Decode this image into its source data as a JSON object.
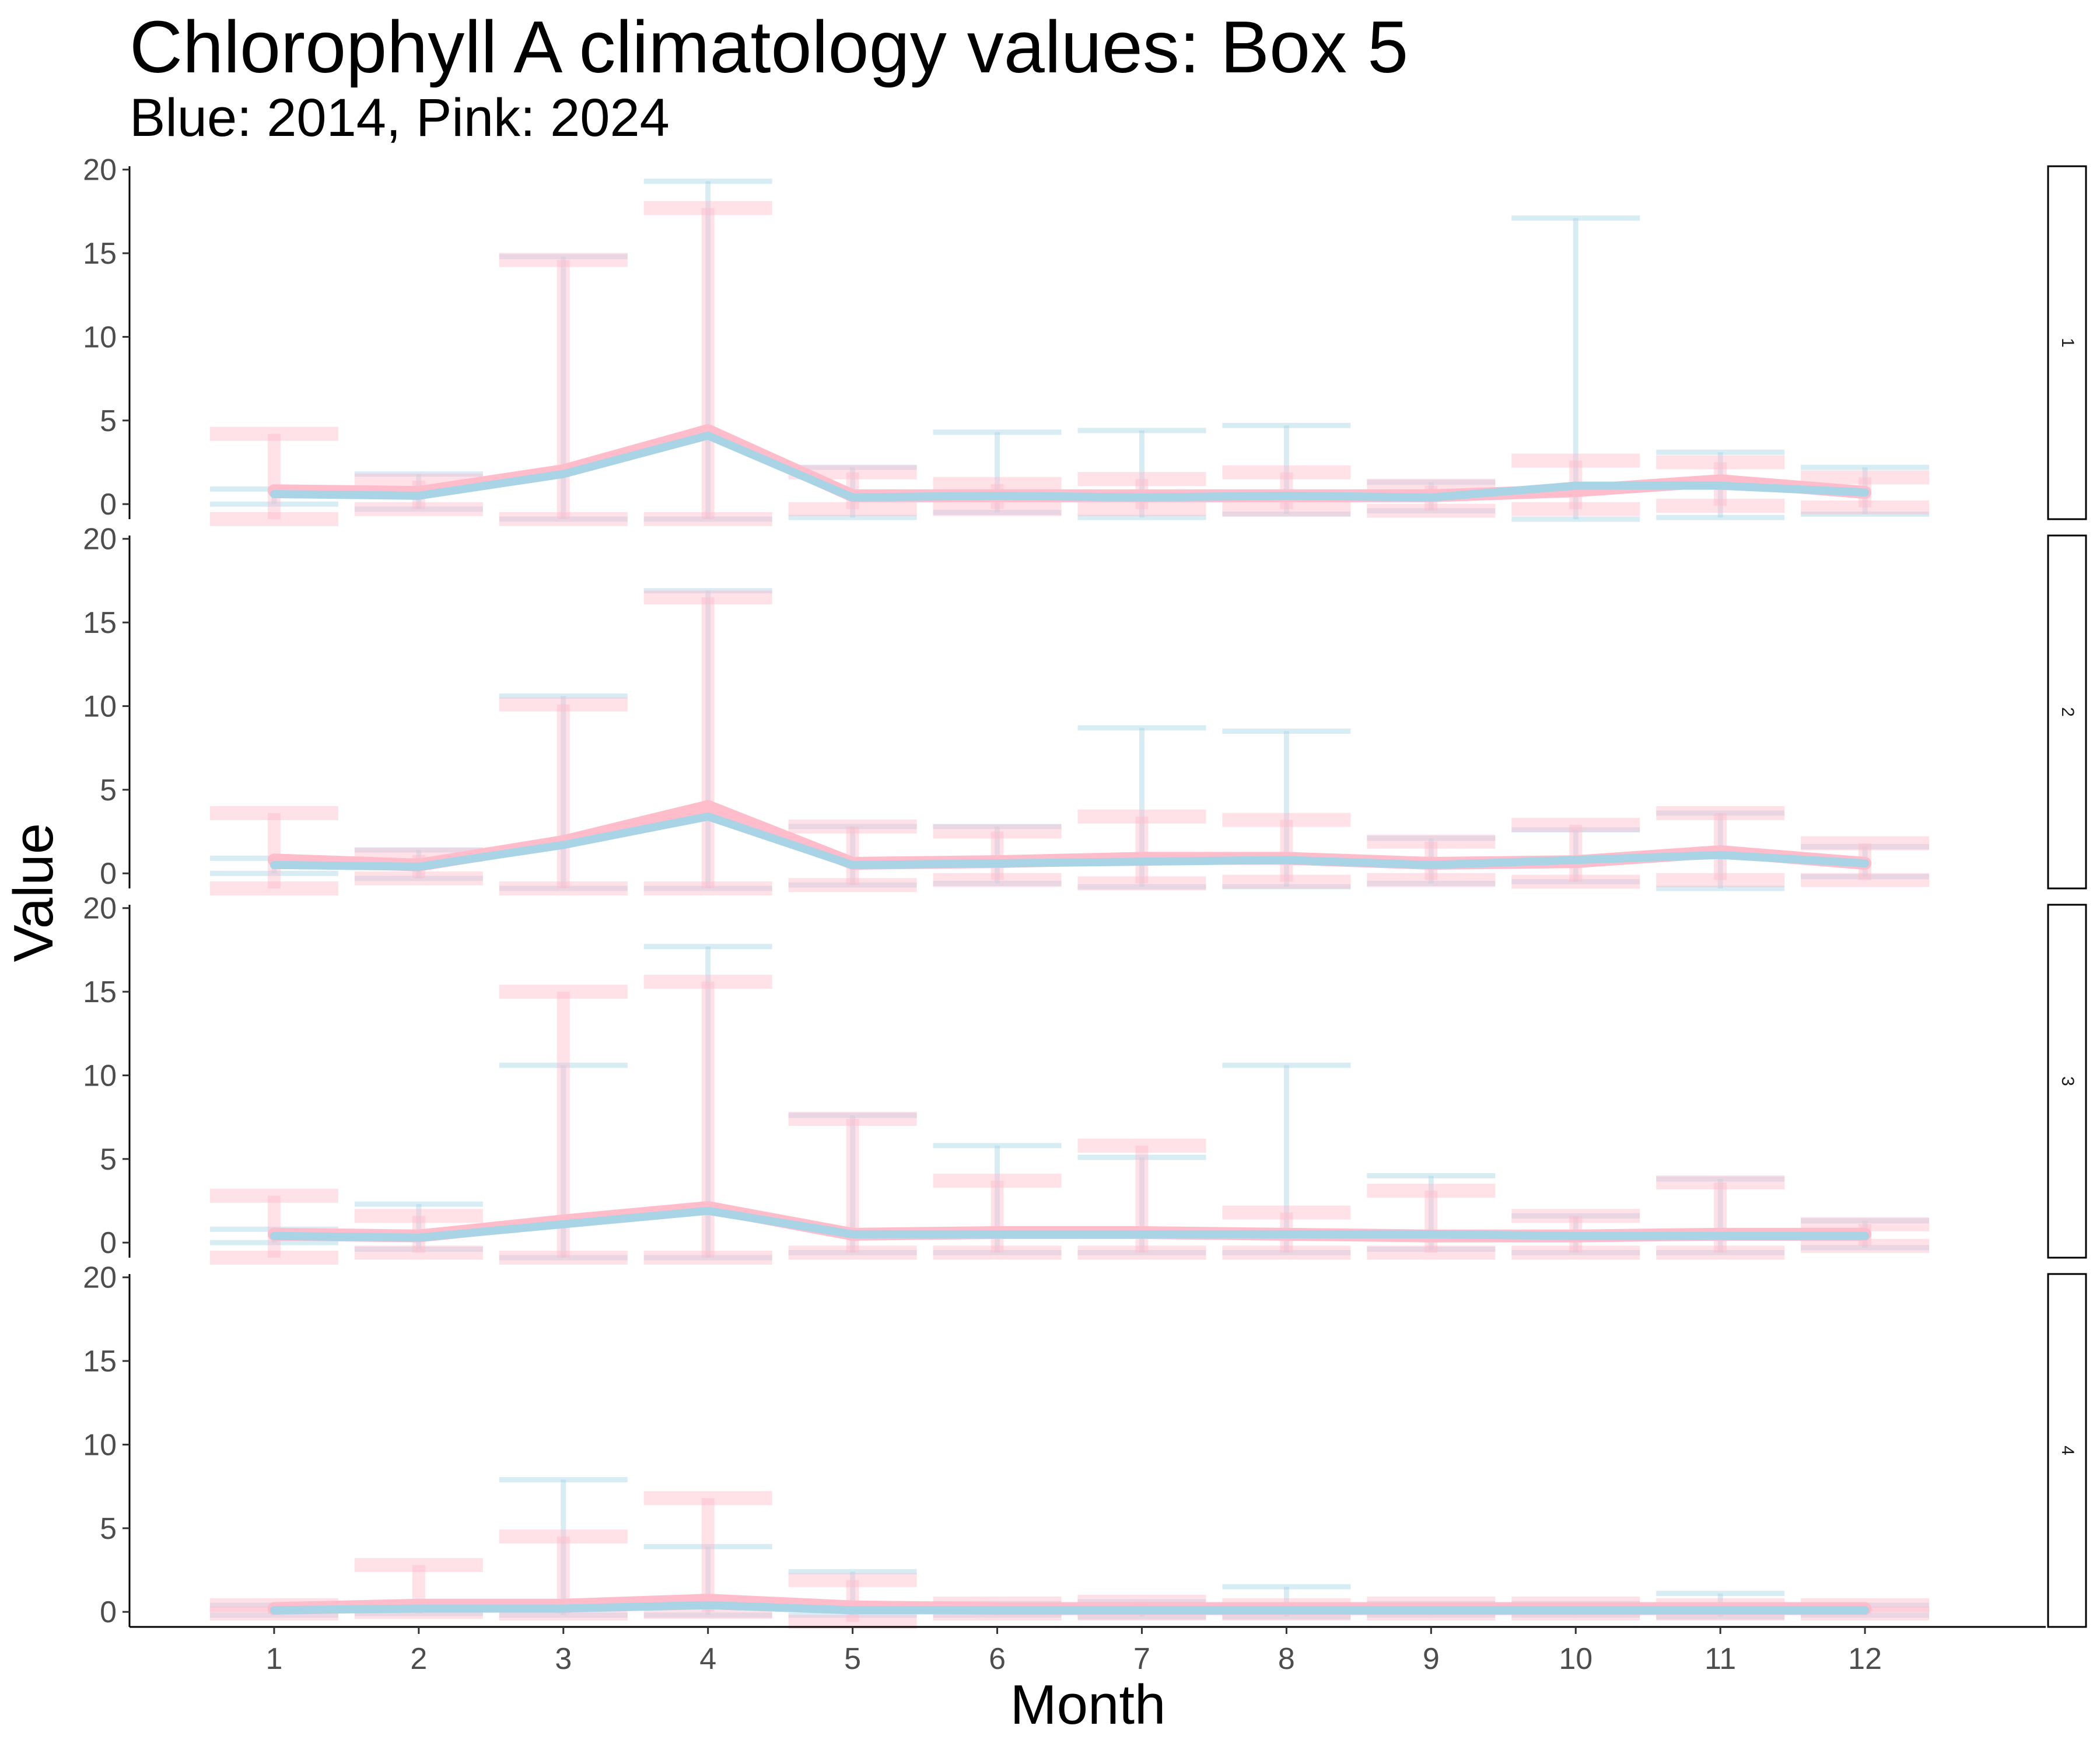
{
  "chart_data": {
    "type": "line",
    "title": "Chlorophyll A climatology values: Box 5",
    "subtitle": "Blue: 2014, Pink: 2024",
    "xlabel": "Month",
    "ylabel": "Value",
    "x": [
      1,
      2,
      3,
      4,
      5,
      6,
      7,
      8,
      9,
      10,
      11,
      12
    ],
    "ylim": [
      -0.9,
      20.2
    ],
    "yticks": [
      0,
      5,
      10,
      15,
      20
    ],
    "grid": false,
    "colors": {
      "2014": "#a8d4e6",
      "2024": "#ffbccb"
    },
    "panels": [
      {
        "strip": "1",
        "series": [
          {
            "mean": [
              0.6,
              0.5,
              1.8,
              4.1,
              0.4,
              0.5,
              0.4,
              0.5,
              0.4,
              1.1,
              1.1,
              0.7
            ],
            "lo": [
              0.0,
              -0.3,
              -0.9,
              -0.9,
              -0.8,
              -0.5,
              -0.8,
              -0.6,
              -0.4,
              -0.9,
              -0.8,
              -0.6
            ],
            "hi": [
              0.9,
              1.8,
              14.8,
              19.3,
              2.2,
              4.3,
              4.4,
              4.7,
              1.3,
              17.1,
              3.1,
              2.2
            ]
          },
          {
            "mean": [
              0.8,
              0.7,
              2.0,
              4.4,
              0.5,
              0.5,
              0.5,
              0.5,
              0.5,
              0.8,
              1.4,
              0.7
            ],
            "lo": [
              -0.9,
              -0.3,
              -0.9,
              -0.9,
              -0.3,
              -0.3,
              -0.3,
              -0.3,
              -0.4,
              -0.3,
              -0.1,
              -0.2
            ],
            "hi": [
              4.2,
              1.4,
              14.6,
              17.7,
              1.9,
              1.2,
              1.5,
              1.9,
              1.1,
              2.6,
              2.5,
              1.6
            ]
          }
        ]
      },
      {
        "strip": "2",
        "series": [
          {
            "mean": [
              0.5,
              0.4,
              1.7,
              3.4,
              0.5,
              0.6,
              0.7,
              0.8,
              0.5,
              0.8,
              1.1,
              0.6
            ],
            "lo": [
              0.0,
              -0.3,
              -0.9,
              -0.9,
              -0.7,
              -0.6,
              -0.8,
              -0.8,
              -0.6,
              -0.5,
              -0.9,
              -0.2
            ],
            "hi": [
              0.9,
              1.4,
              10.6,
              16.9,
              2.8,
              2.8,
              8.7,
              8.5,
              2.1,
              2.6,
              3.6,
              1.6
            ]
          },
          {
            "mean": [
              0.8,
              0.5,
              1.9,
              4.0,
              0.6,
              0.7,
              0.9,
              0.9,
              0.6,
              0.7,
              1.3,
              0.6
            ],
            "lo": [
              -0.9,
              -0.3,
              -0.9,
              -0.9,
              -0.7,
              -0.4,
              -0.6,
              -0.5,
              -0.4,
              -0.5,
              -0.4,
              -0.4
            ],
            "hi": [
              3.6,
              1.1,
              10.1,
              16.5,
              2.8,
              2.5,
              3.4,
              3.2,
              1.9,
              2.9,
              3.6,
              1.8
            ]
          }
        ]
      },
      {
        "strip": "3",
        "series": [
          {
            "mean": [
              0.4,
              0.3,
              1.1,
              1.9,
              0.5,
              0.5,
              0.5,
              0.5,
              0.5,
              0.4,
              0.4,
              0.4
            ],
            "lo": [
              0.0,
              -0.4,
              -0.9,
              -0.9,
              -0.6,
              -0.6,
              -0.6,
              -0.6,
              -0.4,
              -0.6,
              -0.6,
              -0.3
            ],
            "hi": [
              0.8,
              2.3,
              10.6,
              17.7,
              7.6,
              5.8,
              5.1,
              10.6,
              4.0,
              1.6,
              3.8,
              1.3
            ]
          },
          {
            "mean": [
              0.5,
              0.4,
              1.3,
              2.1,
              0.5,
              0.6,
              0.6,
              0.5,
              0.4,
              0.4,
              0.5,
              0.5
            ],
            "lo": [
              -0.9,
              -0.6,
              -0.9,
              -0.9,
              -0.6,
              -0.6,
              -0.6,
              -0.6,
              -0.6,
              -0.6,
              -0.6,
              -0.2
            ],
            "hi": [
              2.8,
              1.6,
              15.0,
              15.6,
              7.4,
              3.7,
              5.8,
              1.8,
              3.1,
              1.6,
              3.6,
              1.1
            ]
          }
        ]
      },
      {
        "strip": "4",
        "series": [
          {
            "mean": [
              0.1,
              0.2,
              0.2,
              0.4,
              0.1,
              0.1,
              0.1,
              0.1,
              0.1,
              0.1,
              0.1,
              0.1
            ],
            "lo": [
              -0.2,
              -0.1,
              -0.2,
              -0.2,
              -0.2,
              -0.2,
              -0.3,
              -0.3,
              -0.2,
              -0.2,
              -0.3,
              -0.2
            ],
            "hi": [
              0.4,
              0.5,
              7.9,
              3.9,
              2.4,
              0.5,
              0.6,
              1.5,
              0.5,
              0.5,
              1.1,
              0.4
            ]
          },
          {
            "mean": [
              0.2,
              0.4,
              0.4,
              0.7,
              0.3,
              0.2,
              0.2,
              0.2,
              0.2,
              0.2,
              0.2,
              0.2
            ],
            "lo": [
              -0.1,
              0.0,
              -0.1,
              0.0,
              -0.6,
              -0.1,
              -0.1,
              -0.1,
              -0.1,
              -0.1,
              -0.1,
              -0.1
            ],
            "hi": [
              0.4,
              2.8,
              4.5,
              6.8,
              1.9,
              0.5,
              0.6,
              0.4,
              0.5,
              0.5,
              0.4,
              0.4
            ]
          }
        ]
      }
    ]
  }
}
